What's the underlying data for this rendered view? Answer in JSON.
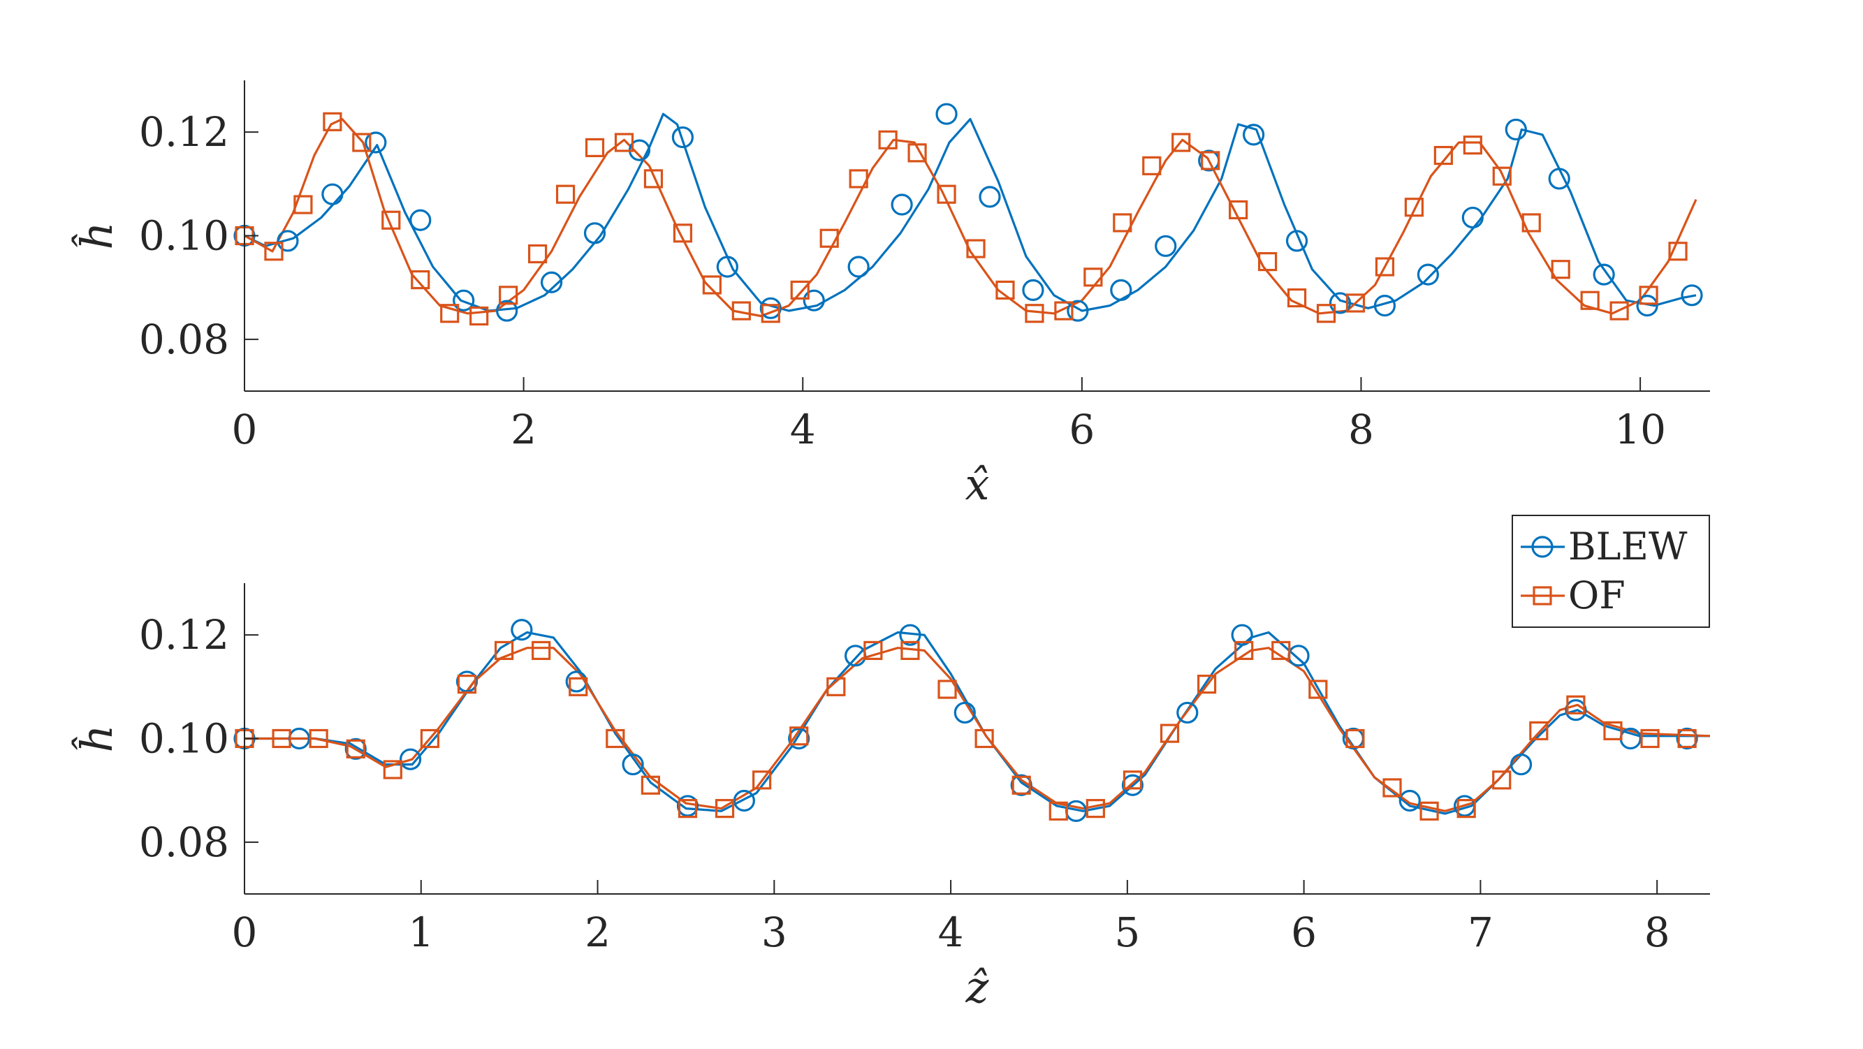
{
  "series_styles": [
    {
      "name": "BLEW",
      "color": "#0072BD",
      "marker": "circle"
    },
    {
      "name": "OF",
      "color": "#D95319",
      "marker": "square"
    }
  ],
  "legend": {
    "placement": "outside-right, between panels",
    "entries": [
      "BLEW",
      "OF"
    ]
  },
  "chart_data": [
    {
      "type": "line",
      "title": "",
      "xlabel": "x̂",
      "ylabel": "ĥ",
      "xlim": [
        0,
        10.5
      ],
      "ylim": [
        0.07,
        0.13
      ],
      "xticks": [
        0,
        2,
        4,
        6,
        8,
        10
      ],
      "xtick_labels": [
        "0",
        "2",
        "4",
        "6",
        "8",
        "10"
      ],
      "yticks": [
        0.08,
        0.1,
        0.12
      ],
      "ytick_labels": [
        "0.08",
        "0.10",
        "0.12"
      ],
      "grid": false,
      "series": [
        {
          "name": "BLEW",
          "curve": {
            "x": [
              0,
              0.15,
              0.35,
              0.55,
              0.75,
              0.95,
              1.15,
              1.35,
              1.55,
              1.75,
              1.95,
              2.15,
              2.35,
              2.55,
              2.75,
              2.9,
              3.0,
              3.1,
              3.3,
              3.5,
              3.7,
              3.9,
              4.1,
              4.3,
              4.5,
              4.7,
              4.9,
              5.05,
              5.2,
              5.4,
              5.6,
              5.8,
              6.0,
              6.2,
              6.4,
              6.6,
              6.8,
              7.0,
              7.12,
              7.25,
              7.45,
              7.65,
              7.85,
              8.05,
              8.25,
              8.45,
              8.65,
              8.85,
              9.05,
              9.15,
              9.3,
              9.5,
              9.7,
              9.9,
              10.1,
              10.3,
              10.4
            ],
            "y": [
              0.1,
              0.098,
              0.0995,
              0.1035,
              0.1095,
              0.1175,
              0.1045,
              0.094,
              0.0875,
              0.0855,
              0.086,
              0.0885,
              0.0935,
              0.1,
              0.109,
              0.117,
              0.1235,
              0.1215,
              0.1055,
              0.0935,
              0.087,
              0.0855,
              0.0865,
              0.0895,
              0.094,
              0.1005,
              0.109,
              0.118,
              0.1225,
              0.1105,
              0.096,
              0.0885,
              0.0855,
              0.0865,
              0.0895,
              0.094,
              0.101,
              0.111,
              0.1215,
              0.1205,
              0.106,
              0.0935,
              0.0875,
              0.086,
              0.0875,
              0.091,
              0.0965,
              0.103,
              0.111,
              0.1205,
              0.1195,
              0.1085,
              0.095,
              0.0875,
              0.0865,
              0.088,
              0.0885
            ]
          },
          "markers": {
            "x": [
              0,
              0.31,
              0.63,
              0.94,
              1.26,
              1.57,
              1.88,
              2.2,
              2.51,
              2.83,
              3.14,
              3.46,
              3.77,
              4.08,
              4.4,
              4.71,
              5.03,
              5.34,
              5.65,
              5.97,
              6.28,
              6.6,
              6.91,
              7.23,
              7.54,
              7.85,
              8.17,
              8.48,
              8.8,
              9.11,
              9.42,
              9.74,
              10.05,
              10.37
            ],
            "y": [
              0.1,
              0.099,
              0.108,
              0.118,
              0.103,
              0.0875,
              0.0855,
              0.091,
              0.1005,
              0.1165,
              0.119,
              0.094,
              0.086,
              0.0875,
              0.094,
              0.106,
              0.1235,
              0.1075,
              0.0895,
              0.0855,
              0.0895,
              0.098,
              0.1145,
              0.1195,
              0.099,
              0.087,
              0.0865,
              0.0925,
              0.1035,
              0.1205,
              0.111,
              0.0925,
              0.0865,
              0.0885
            ]
          }
        },
        {
          "name": "OF",
          "curve": {
            "x": [
              0,
              0.2,
              0.35,
              0.5,
              0.62,
              0.7,
              0.85,
              1.0,
              1.2,
              1.4,
              1.6,
              1.8,
              2.0,
              2.2,
              2.4,
              2.6,
              2.72,
              2.9,
              3.1,
              3.3,
              3.5,
              3.7,
              3.9,
              4.1,
              4.3,
              4.5,
              4.65,
              4.8,
              5.0,
              5.2,
              5.4,
              5.6,
              5.8,
              6.0,
              6.2,
              6.4,
              6.6,
              6.72,
              6.9,
              7.1,
              7.3,
              7.5,
              7.7,
              7.9,
              8.1,
              8.3,
              8.5,
              8.7,
              8.85,
              9.0,
              9.2,
              9.4,
              9.6,
              9.8,
              10.0,
              10.2,
              10.4
            ],
            "y": [
              0.1,
              0.097,
              0.1045,
              0.1155,
              0.1215,
              0.1225,
              0.118,
              0.105,
              0.0925,
              0.0865,
              0.085,
              0.0855,
              0.0895,
              0.097,
              0.1075,
              0.116,
              0.1185,
              0.1135,
              0.1015,
              0.091,
              0.0855,
              0.0845,
              0.0865,
              0.0925,
              0.1025,
              0.113,
              0.1185,
              0.118,
              0.1085,
              0.097,
              0.0895,
              0.0855,
              0.085,
              0.0875,
              0.094,
              0.1045,
              0.1145,
              0.1185,
              0.115,
              0.1045,
              0.094,
              0.0875,
              0.085,
              0.0855,
              0.0905,
              0.1005,
              0.1115,
              0.118,
              0.118,
              0.1125,
              0.1005,
              0.0915,
              0.0865,
              0.085,
              0.0875,
              0.095,
              0.107
            ]
          },
          "markers": {
            "x": [
              0,
              0.21,
              0.42,
              0.63,
              0.84,
              1.05,
              1.26,
              1.47,
              1.68,
              1.89,
              2.1,
              2.3,
              2.51,
              2.72,
              2.93,
              3.14,
              3.35,
              3.56,
              3.77,
              3.98,
              4.19,
              4.4,
              4.61,
              4.82,
              5.03,
              5.24,
              5.45,
              5.66,
              5.87,
              6.08,
              6.29,
              6.5,
              6.71,
              6.92,
              7.12,
              7.33,
              7.54,
              7.75,
              7.96,
              8.17,
              8.38,
              8.59,
              8.8,
              9.01,
              9.22,
              9.43,
              9.64,
              9.85,
              10.06,
              10.27
            ],
            "y": [
              0.1,
              0.097,
              0.106,
              0.122,
              0.118,
              0.103,
              0.0915,
              0.085,
              0.0845,
              0.0885,
              0.0965,
              0.108,
              0.117,
              0.118,
              0.111,
              0.1005,
              0.0905,
              0.0855,
              0.085,
              0.0895,
              0.0995,
              0.111,
              0.1185,
              0.116,
              0.108,
              0.0975,
              0.0895,
              0.085,
              0.0855,
              0.092,
              0.1025,
              0.1135,
              0.118,
              0.1145,
              0.105,
              0.095,
              0.088,
              0.085,
              0.087,
              0.094,
              0.1055,
              0.1155,
              0.1175,
              0.1115,
              0.1025,
              0.0935,
              0.0875,
              0.0855,
              0.0885,
              0.097
            ]
          }
        }
      ]
    },
    {
      "type": "line",
      "title": "",
      "xlabel": "ẑ",
      "ylabel": "ĥ",
      "xlim": [
        0,
        8.3
      ],
      "ylim": [
        0.07,
        0.13
      ],
      "xticks": [
        0,
        1,
        2,
        3,
        4,
        5,
        6,
        7,
        8
      ],
      "xtick_labels": [
        "0",
        "1",
        "2",
        "3",
        "4",
        "5",
        "6",
        "7",
        "8"
      ],
      "yticks": [
        0.08,
        0.1,
        0.12
      ],
      "ytick_labels": [
        "0.08",
        "0.10",
        "0.12"
      ],
      "grid": false,
      "series": [
        {
          "name": "BLEW",
          "curve": {
            "x": [
              0,
              0.4,
              0.6,
              0.8,
              0.95,
              1.1,
              1.3,
              1.45,
              1.6,
              1.75,
              1.9,
              2.1,
              2.3,
              2.5,
              2.7,
              2.9,
              3.1,
              3.3,
              3.5,
              3.7,
              3.85,
              4.0,
              4.2,
              4.4,
              4.6,
              4.75,
              4.9,
              5.1,
              5.3,
              5.5,
              5.7,
              5.8,
              6.0,
              6.2,
              6.4,
              6.6,
              6.8,
              6.95,
              7.1,
              7.3,
              7.45,
              7.55,
              7.7,
              7.9,
              8.3
            ],
            "y": [
              0.1,
              0.1,
              0.099,
              0.095,
              0.095,
              0.101,
              0.111,
              0.1175,
              0.1205,
              0.1195,
              0.113,
              0.101,
              0.0915,
              0.0865,
              0.086,
              0.0895,
              0.0985,
              0.1095,
              0.117,
              0.1205,
              0.12,
              0.1125,
              0.1005,
              0.0915,
              0.087,
              0.086,
              0.087,
              0.093,
              0.1035,
              0.1135,
              0.1195,
              0.1205,
              0.1145,
              0.1025,
              0.0925,
              0.087,
              0.0855,
              0.087,
              0.092,
              0.0995,
              0.1045,
              0.1055,
              0.1025,
              0.1005,
              0.1005
            ]
          },
          "markers": {
            "x": [
              0,
              0.31,
              0.63,
              0.94,
              1.26,
              1.57,
              1.88,
              2.2,
              2.51,
              2.83,
              3.14,
              3.46,
              3.77,
              4.08,
              4.4,
              4.71,
              5.03,
              5.34,
              5.65,
              5.97,
              6.28,
              6.6,
              6.91,
              7.23,
              7.54,
              7.85,
              8.17
            ],
            "y": [
              0.1,
              0.1,
              0.098,
              0.096,
              0.111,
              0.121,
              0.111,
              0.095,
              0.087,
              0.088,
              0.1,
              0.116,
              0.12,
              0.105,
              0.091,
              0.086,
              0.091,
              0.105,
              0.12,
              0.116,
              0.1,
              0.088,
              0.087,
              0.095,
              0.1055,
              0.1,
              0.1
            ]
          }
        },
        {
          "name": "OF",
          "curve": {
            "x": [
              0,
              0.4,
              0.6,
              0.8,
              0.95,
              1.1,
              1.3,
              1.45,
              1.6,
              1.75,
              1.9,
              2.1,
              2.3,
              2.5,
              2.7,
              2.9,
              3.1,
              3.3,
              3.5,
              3.7,
              3.85,
              4.0,
              4.2,
              4.4,
              4.6,
              4.75,
              4.9,
              5.1,
              5.3,
              5.5,
              5.7,
              5.8,
              6.0,
              6.2,
              6.4,
              6.6,
              6.8,
              6.95,
              7.1,
              7.3,
              7.45,
              7.55,
              7.7,
              7.9,
              8.3
            ],
            "y": [
              0.1,
              0.1,
              0.0985,
              0.0945,
              0.096,
              0.102,
              0.111,
              0.1155,
              0.1175,
              0.1175,
              0.1125,
              0.1015,
              0.0925,
              0.0875,
              0.0865,
              0.0905,
              0.0995,
              0.1095,
              0.1155,
              0.1175,
              0.117,
              0.1115,
              0.1005,
              0.092,
              0.0875,
              0.0865,
              0.0875,
              0.0935,
              0.1035,
              0.1125,
              0.117,
              0.1175,
              0.113,
              0.102,
              0.0925,
              0.0875,
              0.086,
              0.0875,
              0.092,
              0.1,
              0.1055,
              0.1065,
              0.103,
              0.101,
              0.1005
            ]
          },
          "markers": {
            "x": [
              0,
              0.21,
              0.42,
              0.63,
              0.84,
              1.05,
              1.26,
              1.47,
              1.68,
              1.89,
              2.1,
              2.3,
              2.51,
              2.72,
              2.93,
              3.14,
              3.35,
              3.56,
              3.77,
              3.98,
              4.19,
              4.4,
              4.61,
              4.82,
              5.03,
              5.24,
              5.45,
              5.66,
              5.87,
              6.08,
              6.29,
              6.5,
              6.71,
              6.92,
              7.12,
              7.33,
              7.54,
              7.75,
              7.96,
              8.17
            ],
            "y": [
              0.1,
              0.1,
              0.1,
              0.098,
              0.094,
              0.1,
              0.1105,
              0.117,
              0.117,
              0.11,
              0.1,
              0.091,
              0.0865,
              0.0865,
              0.092,
              0.1005,
              0.11,
              0.117,
              0.117,
              0.1095,
              0.1,
              0.091,
              0.086,
              0.0865,
              0.092,
              0.101,
              0.1105,
              0.117,
              0.117,
              0.1095,
              0.1,
              0.0905,
              0.086,
              0.0865,
              0.092,
              0.1015,
              0.1065,
              0.1015,
              0.1,
              0.1
            ]
          }
        }
      ]
    }
  ]
}
